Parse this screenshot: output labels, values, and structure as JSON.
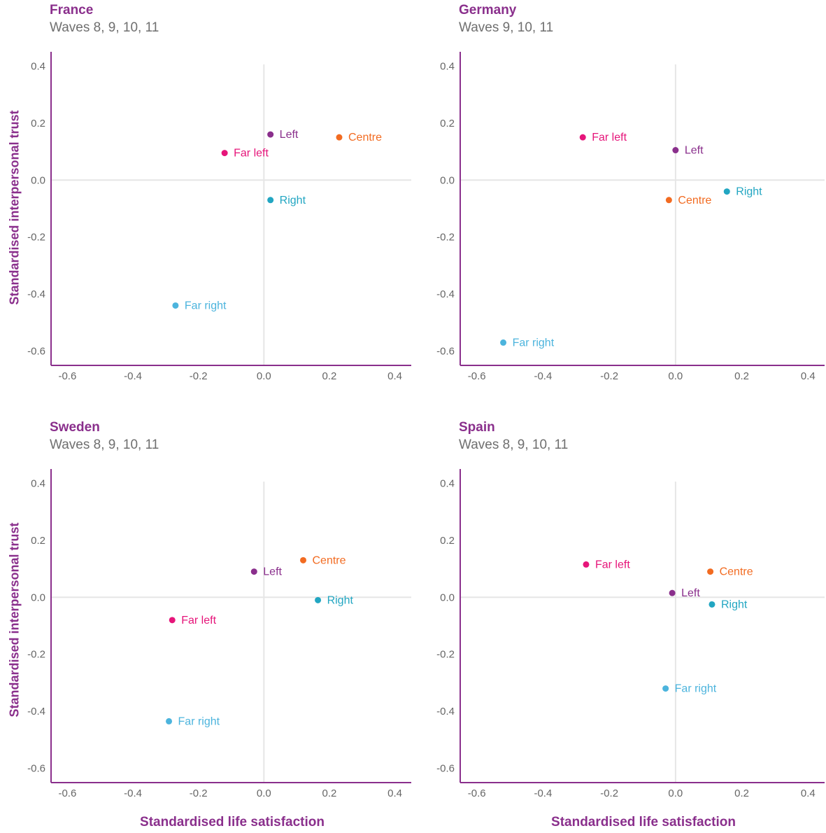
{
  "axis_labels": {
    "y": "Standardised interpersonal trust",
    "x": "Standardised life satisfaction"
  },
  "colors": {
    "Far left": "#e6157a",
    "Left": "#8a2f8c",
    "Centre": "#f26b21",
    "Right": "#22a6c2",
    "Far right": "#4cb4dd",
    "axis": "#8a2f8c",
    "grid": "#e6e6e6",
    "tick": "#666666"
  },
  "chart_data": [
    {
      "type": "scatter",
      "title": "France",
      "subtitle": "Waves 8, 9, 10, 11",
      "xlim": [
        -0.65,
        0.45
      ],
      "ylim": [
        -0.65,
        0.45
      ],
      "xticks": [
        "-0.6",
        "-0.4",
        "-0.2",
        "0.0",
        "0.2",
        "0.4"
      ],
      "yticks": [
        "0.4",
        "0.2",
        "0.0",
        "-0.2",
        "-0.4",
        "-0.6"
      ],
      "points": [
        {
          "label": "Left",
          "x": 0.02,
          "y": 0.16
        },
        {
          "label": "Centre",
          "x": 0.23,
          "y": 0.15
        },
        {
          "label": "Far left",
          "x": -0.12,
          "y": 0.095
        },
        {
          "label": "Right",
          "x": 0.02,
          "y": -0.07
        },
        {
          "label": "Far right",
          "x": -0.27,
          "y": -0.44
        }
      ]
    },
    {
      "type": "scatter",
      "title": "Germany",
      "subtitle": "Waves 9, 10, 11",
      "xlim": [
        -0.65,
        0.45
      ],
      "ylim": [
        -0.65,
        0.45
      ],
      "xticks": [
        "-0.6",
        "-0.4",
        "-0.2",
        "0.0",
        "0.2",
        "0.4"
      ],
      "yticks": [
        "0.4",
        "0.2",
        "0.0",
        "-0.2",
        "-0.4",
        "-0.6"
      ],
      "points": [
        {
          "label": "Far left",
          "x": -0.28,
          "y": 0.15
        },
        {
          "label": "Left",
          "x": 0.0,
          "y": 0.105
        },
        {
          "label": "Right",
          "x": 0.155,
          "y": -0.04
        },
        {
          "label": "Centre",
          "x": -0.02,
          "y": -0.07
        },
        {
          "label": "Far right",
          "x": -0.52,
          "y": -0.57
        }
      ]
    },
    {
      "type": "scatter",
      "title": "Sweden",
      "subtitle": "Waves 8, 9, 10, 11",
      "xlim": [
        -0.65,
        0.45
      ],
      "ylim": [
        -0.65,
        0.45
      ],
      "xticks": [
        "-0.6",
        "-0.4",
        "-0.2",
        "0.0",
        "0.2",
        "0.4"
      ],
      "yticks": [
        "0.4",
        "0.2",
        "0.0",
        "-0.2",
        "-0.4",
        "-0.6"
      ],
      "points": [
        {
          "label": "Centre",
          "x": 0.12,
          "y": 0.13
        },
        {
          "label": "Left",
          "x": -0.03,
          "y": 0.09
        },
        {
          "label": "Right",
          "x": 0.165,
          "y": -0.01
        },
        {
          "label": "Far left",
          "x": -0.28,
          "y": -0.08
        },
        {
          "label": "Far right",
          "x": -0.29,
          "y": -0.435
        }
      ]
    },
    {
      "type": "scatter",
      "title": "Spain",
      "subtitle": "Waves 8, 9, 10, 11",
      "xlim": [
        -0.65,
        0.45
      ],
      "ylim": [
        -0.65,
        0.45
      ],
      "xticks": [
        "-0.6",
        "-0.4",
        "-0.2",
        "0.0",
        "0.2",
        "0.4"
      ],
      "yticks": [
        "0.4",
        "0.2",
        "0.0",
        "-0.2",
        "-0.4",
        "-0.6"
      ],
      "points": [
        {
          "label": "Far left",
          "x": -0.27,
          "y": 0.115
        },
        {
          "label": "Centre",
          "x": 0.105,
          "y": 0.09
        },
        {
          "label": "Left",
          "x": -0.01,
          "y": 0.015
        },
        {
          "label": "Right",
          "x": 0.11,
          "y": -0.025
        },
        {
          "label": "Far right",
          "x": -0.03,
          "y": -0.32
        }
      ]
    }
  ]
}
